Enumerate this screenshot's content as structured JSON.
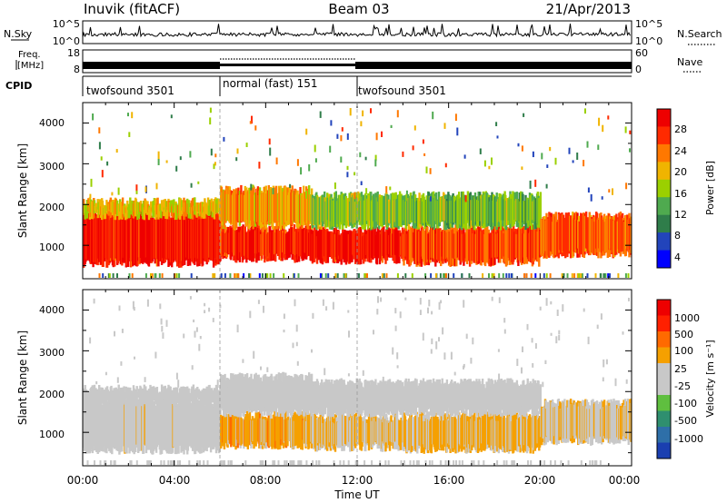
{
  "header": {
    "station": "Inuvik (fitACF)",
    "beam": "Beam 03",
    "date": "21/Apr/2013"
  },
  "nsky_panel": {
    "label": "N.Sky",
    "right_label": "N.Search",
    "left_ticks": [
      "10^5",
      "10^0"
    ],
    "right_ticks": [
      "10^5",
      "10^0"
    ]
  },
  "freq_panel": {
    "label_line1": "Freq.",
    "label_line2": "[MHz]",
    "right_label": "Nave",
    "left_ticks": [
      "18",
      "8"
    ],
    "right_ticks": [
      "60",
      "0"
    ]
  },
  "cpid_panel": {
    "label": "CPID",
    "segments": [
      {
        "name": "twofsound 3501",
        "start_h": 0,
        "end_h": 6
      },
      {
        "name": "normal (fast) 151",
        "start_h": 6,
        "end_h": 12
      },
      {
        "name": "twofsound 3501",
        "start_h": 12,
        "end_h": 24
      }
    ]
  },
  "power_panel": {
    "ylabel": "Slant Range [km]",
    "yticks": [
      "4000",
      "3000",
      "2000",
      "1000"
    ],
    "colorbar_label": "Power [dB]",
    "colorbar_ticks": [
      "28",
      "24",
      "20",
      "16",
      "12",
      "8",
      "4"
    ],
    "colors": [
      "#0000ff",
      "#2244bb",
      "#2f7d4a",
      "#4faa4f",
      "#9bd000",
      "#f0b400",
      "#ff7800",
      "#ff2a00",
      "#ee0000"
    ]
  },
  "velocity_panel": {
    "ylabel": "Slant Range [km]",
    "yticks": [
      "4000",
      "3000",
      "2000",
      "1000"
    ],
    "colorbar_label": "Velocity [m s⁻¹]",
    "colorbar_ticks": [
      "1000",
      "500",
      "100",
      "25",
      "-25",
      "-100",
      "-500",
      "-1000"
    ],
    "colors": [
      "#1a3fb0",
      "#2e6fa8",
      "#2f8f6f",
      "#5fbf3f",
      "#c8c8c8",
      "#c8c8c8",
      "#f5a000",
      "#ff6a00",
      "#ff2000",
      "#ee0000"
    ]
  },
  "time_axis": {
    "xlabel": "Time UT",
    "ticks": [
      "00:00",
      "04:00",
      "08:00",
      "12:00",
      "16:00",
      "20:00",
      "00:00"
    ]
  },
  "chart_data": {
    "type": "heatmap",
    "x_range_hours": [
      0,
      24
    ],
    "y_range_km": [
      180,
      4500
    ],
    "power_range_db": [
      0,
      30
    ],
    "velocity_range_ms": [
      -1000,
      1000
    ],
    "scatter_bands": [
      {
        "t0": 0,
        "t1": 6,
        "r_low": 580,
        "r_high": 1750,
        "power": 27,
        "velocity": -80
      },
      {
        "t0": 0,
        "t1": 6,
        "r_low": 1750,
        "r_high": 2050,
        "power": 18,
        "velocity": 15
      },
      {
        "t0": 6,
        "t1": 10,
        "r_low": 700,
        "r_high": 1400,
        "power": 26,
        "velocity": -300
      },
      {
        "t0": 6,
        "t1": 10,
        "r_low": 1500,
        "r_high": 2350,
        "power": 20,
        "velocity": 10
      },
      {
        "t0": 10,
        "t1": 14,
        "r_low": 650,
        "r_high": 1350,
        "power": 27,
        "velocity": -200
      },
      {
        "t0": 10,
        "t1": 14,
        "r_low": 1500,
        "r_high": 2200,
        "power": 14,
        "velocity": 10
      },
      {
        "t0": 14,
        "t1": 20,
        "r_low": 600,
        "r_high": 1400,
        "power": 24,
        "velocity": -250
      },
      {
        "t0": 14,
        "t1": 20,
        "r_low": 1500,
        "r_high": 2200,
        "power": 13,
        "velocity": 5
      },
      {
        "t0": 20,
        "t1": 24,
        "r_low": 800,
        "r_high": 1700,
        "power": 23,
        "velocity": -150
      }
    ]
  }
}
